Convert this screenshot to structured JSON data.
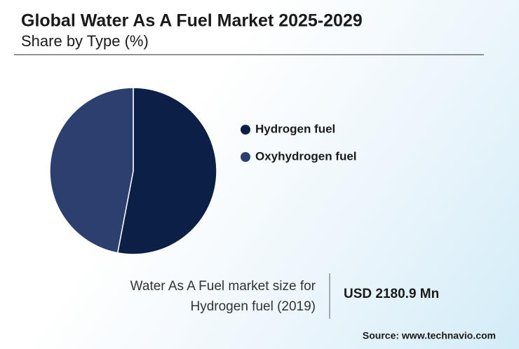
{
  "chart_data": {
    "type": "pie",
    "title": "Global Water As A Fuel Market 2025-2029",
    "subtitle": "Share by Type (%)",
    "categories": [
      "Hydrogen fuel",
      "Oxyhydrogen fuel"
    ],
    "values": [
      53,
      47
    ],
    "colors": [
      "#0c1f45",
      "#2c4070"
    ],
    "legend": "right"
  },
  "summary": {
    "label": "Water As A Fuel market size for Hydrogen fuel (2019)",
    "value": "USD 2180.9 Mn"
  },
  "source": "Source: www.technavio.com"
}
